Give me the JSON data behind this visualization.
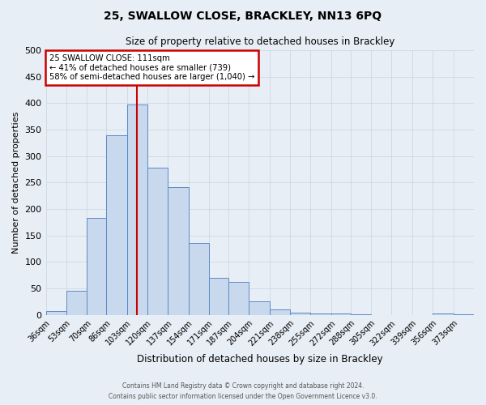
{
  "title": "25, SWALLOW CLOSE, BRACKLEY, NN13 6PQ",
  "subtitle": "Size of property relative to detached houses in Brackley",
  "xlabel": "Distribution of detached houses by size in Brackley",
  "ylabel": "Number of detached properties",
  "bin_labels": [
    "36sqm",
    "53sqm",
    "70sqm",
    "86sqm",
    "103sqm",
    "120sqm",
    "137sqm",
    "154sqm",
    "171sqm",
    "187sqm",
    "204sqm",
    "221sqm",
    "238sqm",
    "255sqm",
    "272sqm",
    "288sqm",
    "305sqm",
    "322sqm",
    "339sqm",
    "356sqm",
    "373sqm"
  ],
  "bin_edges": [
    36,
    53,
    70,
    86,
    103,
    120,
    137,
    154,
    171,
    187,
    204,
    221,
    238,
    255,
    272,
    288,
    305,
    322,
    339,
    356,
    373,
    390
  ],
  "bar_heights": [
    8,
    46,
    184,
    340,
    398,
    278,
    242,
    136,
    70,
    62,
    26,
    11,
    5,
    2,
    2,
    1,
    0,
    0,
    0,
    2,
    1
  ],
  "bar_facecolor": "#c9d9ed",
  "bar_edgecolor": "#5b8ac7",
  "vline_x": 111,
  "vline_color": "#cc0000",
  "annotation_line1": "25 SWALLOW CLOSE: 111sqm",
  "annotation_line2": "← 41% of detached houses are smaller (739)",
  "annotation_line3": "58% of semi-detached houses are larger (1,040) →",
  "annotation_box_edgecolor": "#cc0000",
  "annotation_box_facecolor": "#ffffff",
  "ylim": [
    0,
    500
  ],
  "yticks": [
    0,
    50,
    100,
    150,
    200,
    250,
    300,
    350,
    400,
    450,
    500
  ],
  "grid_color": "#c8d4e0",
  "bg_color": "#e8eef5",
  "footer_line1": "Contains HM Land Registry data © Crown copyright and database right 2024.",
  "footer_line2": "Contains public sector information licensed under the Open Government Licence v3.0."
}
